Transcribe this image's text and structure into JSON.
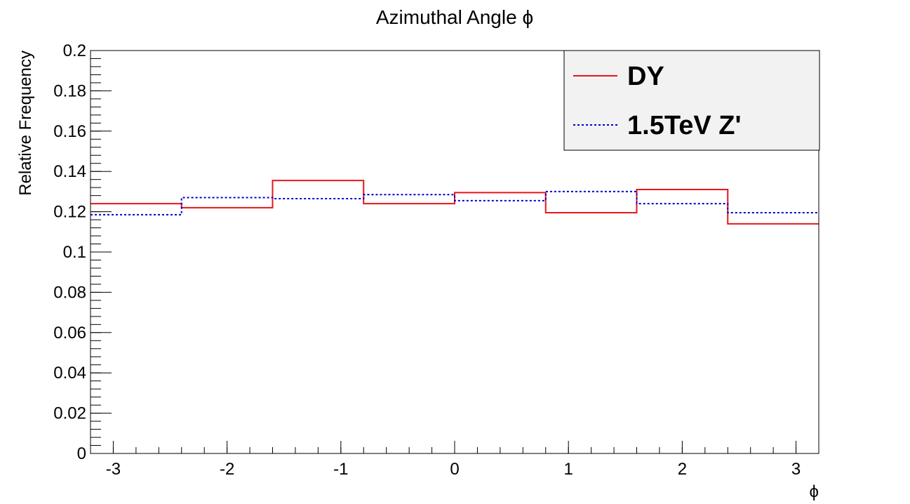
{
  "chart_data": {
    "type": "line",
    "title": "Azimuthal Angle ϕ",
    "xlabel": "ϕ",
    "ylabel": "Relative Frequency",
    "xlim": [
      -3.2,
      3.2
    ],
    "ylim": [
      0,
      0.2
    ],
    "grid": false,
    "legend_position": "top-right",
    "x_ticks": [
      -3,
      -2,
      -1,
      0,
      1,
      2,
      3
    ],
    "x_tick_labels": [
      "-3",
      "-2",
      "-1",
      "0",
      "1",
      "2",
      "3"
    ],
    "y_ticks": [
      0,
      0.02,
      0.04,
      0.06,
      0.08,
      0.1,
      0.12,
      0.14,
      0.16,
      0.18,
      0.2
    ],
    "y_tick_labels": [
      "0",
      "0.02",
      "0.04",
      "0.06",
      "0.08",
      "0.1",
      "0.12",
      "0.14",
      "0.16",
      "0.18",
      "0.2"
    ],
    "bin_edges": [
      -3.2,
      -2.4,
      -1.6,
      -0.8,
      0.0,
      0.8,
      1.6,
      2.4,
      3.2
    ],
    "series": [
      {
        "name": "DY",
        "color": "#e8161a",
        "style": "solid",
        "values": [
          0.124,
          0.122,
          0.1355,
          0.124,
          0.1295,
          0.1195,
          0.131,
          0.114
        ]
      },
      {
        "name": "1.5TeV Z'",
        "color": "#0000cc",
        "style": "dotted",
        "values": [
          0.1185,
          0.127,
          0.1265,
          0.1285,
          0.1255,
          0.13,
          0.124,
          0.1195
        ]
      }
    ]
  }
}
